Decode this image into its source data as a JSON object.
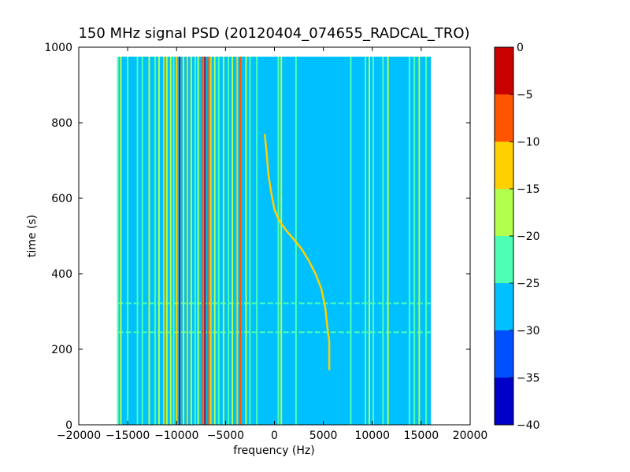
{
  "chart_data": {
    "type": "heatmap",
    "title": "150 MHz signal PSD (20120404_074655_RADCAL_TRO)",
    "xlabel": "frequency (Hz)",
    "ylabel": "time (s)",
    "xlim": [
      -20000,
      20000
    ],
    "ylim": [
      0,
      1000
    ],
    "x_ticks": [
      "−20000",
      "−15000",
      "−10000",
      "−5000",
      "0",
      "5000",
      "10000",
      "15000",
      "20000"
    ],
    "y_ticks": [
      "0",
      "200",
      "400",
      "600",
      "800",
      "1000"
    ],
    "data_extent": {
      "x": [
        -16000,
        16000
      ],
      "y": [
        0,
        975
      ]
    },
    "colorbar": {
      "min": -40,
      "max": 0,
      "levels": [
        {
          "from": -40,
          "to": -35,
          "color": "#0000c8"
        },
        {
          "from": -35,
          "to": -30,
          "color": "#0050ff"
        },
        {
          "from": -30,
          "to": -25,
          "color": "#00c0ff"
        },
        {
          "from": -25,
          "to": -20,
          "color": "#4dffb2"
        },
        {
          "from": -20,
          "to": -15,
          "color": "#b2ff4d"
        },
        {
          "from": -15,
          "to": -10,
          "color": "#ffd000"
        },
        {
          "from": -10,
          "to": -5,
          "color": "#ff5500"
        },
        {
          "from": -5,
          "to": 0,
          "color": "#c80000"
        }
      ],
      "ticks": [
        "0",
        "−5",
        "−10",
        "−15",
        "−20",
        "−25",
        "−30",
        "−35",
        "−40"
      ]
    },
    "background_level": -27.5,
    "vertical_lines": [
      {
        "x": -16000,
        "level": -22.5
      },
      {
        "x": -15700,
        "level": -17.5
      },
      {
        "x": -15000,
        "level": -22.5
      },
      {
        "x": -14000,
        "level": -22.5
      },
      {
        "x": -13500,
        "level": -22.5
      },
      {
        "x": -12800,
        "level": -17.5
      },
      {
        "x": -12200,
        "level": -22.5
      },
      {
        "x": -11800,
        "level": -17.5
      },
      {
        "x": -11300,
        "level": -12.5
      },
      {
        "x": -11000,
        "level": -17.5
      },
      {
        "x": -10600,
        "level": -17.5
      },
      {
        "x": -10300,
        "level": -22.5
      },
      {
        "x": -10000,
        "level": -12.5
      },
      {
        "x": -9700,
        "level": -2.5
      },
      {
        "x": -9300,
        "level": -17.5
      },
      {
        "x": -8900,
        "level": -12.5
      },
      {
        "x": -8500,
        "level": -17.5
      },
      {
        "x": -8100,
        "level": -22.5
      },
      {
        "x": -7800,
        "level": -17.5
      },
      {
        "x": -7400,
        "level": -7.5
      },
      {
        "x": -7100,
        "level": -2.5
      },
      {
        "x": -6800,
        "level": -7.5
      },
      {
        "x": -6500,
        "level": -12.5
      },
      {
        "x": -6100,
        "level": -17.5
      },
      {
        "x": -5700,
        "level": -22.5
      },
      {
        "x": -5200,
        "level": -17.5
      },
      {
        "x": -4700,
        "level": -22.5
      },
      {
        "x": -4300,
        "level": -17.5
      },
      {
        "x": -3800,
        "level": -12.5
      },
      {
        "x": -3500,
        "level": -7.5
      },
      {
        "x": -2900,
        "level": -17.5
      },
      {
        "x": -2500,
        "level": -22.5
      },
      {
        "x": -1800,
        "level": -22.5
      },
      {
        "x": 400,
        "level": -22.5
      },
      {
        "x": 700,
        "level": -17.5
      },
      {
        "x": 2200,
        "level": -22.5
      },
      {
        "x": 7800,
        "level": -22.5
      },
      {
        "x": 9300,
        "level": -22.5
      },
      {
        "x": 9700,
        "level": -17.5
      },
      {
        "x": 10100,
        "level": -22.5
      },
      {
        "x": 11100,
        "level": -22.5
      },
      {
        "x": 11600,
        "level": -17.5
      },
      {
        "x": 13800,
        "level": -22.5
      },
      {
        "x": 14300,
        "level": -22.5
      },
      {
        "x": 14800,
        "level": -17.5
      },
      {
        "x": 15500,
        "level": -22.5
      }
    ],
    "horizontal_lines": [
      {
        "y": 322,
        "level": -22.5
      },
      {
        "y": 245,
        "level": -22.5
      }
    ],
    "sweep_curve": {
      "level": -12.5,
      "points": [
        [
          -1000,
          770
        ],
        [
          -800,
          720
        ],
        [
          -600,
          660
        ],
        [
          -300,
          610
        ],
        [
          0,
          570
        ],
        [
          500,
          540
        ],
        [
          1200,
          515
        ],
        [
          2000,
          490
        ],
        [
          2800,
          465
        ],
        [
          3500,
          435
        ],
        [
          4200,
          400
        ],
        [
          4800,
          360
        ],
        [
          5200,
          310
        ],
        [
          5400,
          260
        ],
        [
          5600,
          220
        ],
        [
          5600,
          145
        ]
      ]
    }
  }
}
